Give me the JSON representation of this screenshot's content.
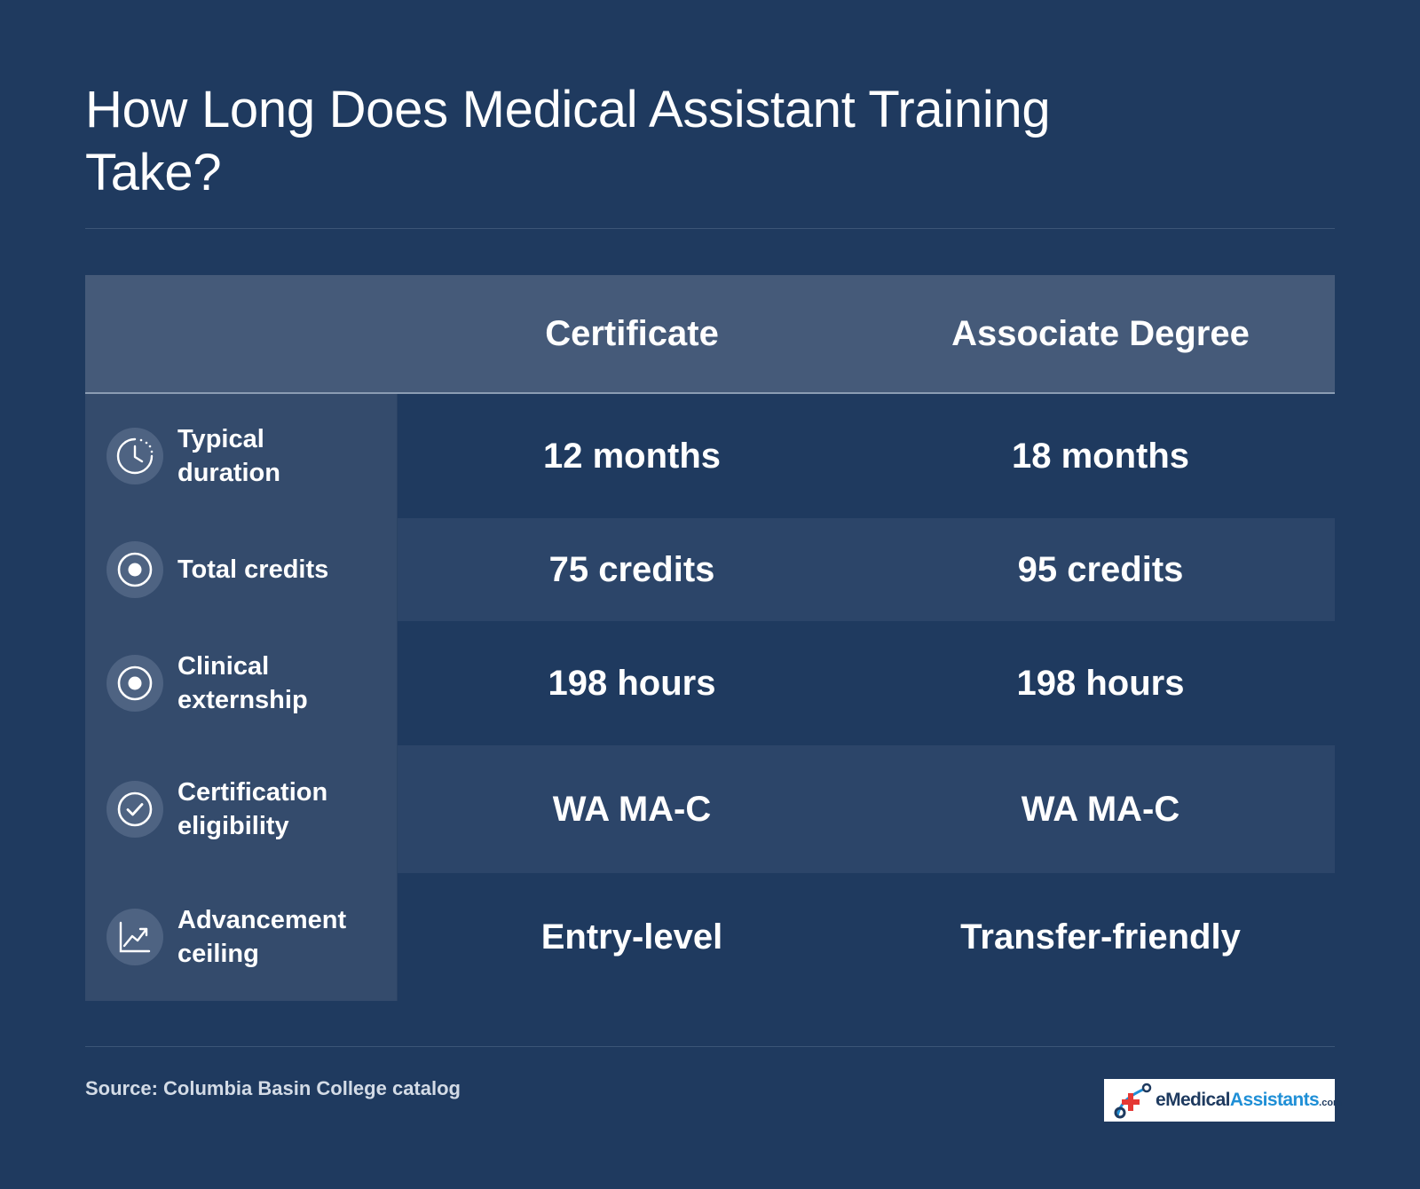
{
  "title": "How Long Does Medical Assistant Training Take?",
  "table": {
    "columns": [
      "Certificate",
      "Associate Degree"
    ],
    "rows": [
      {
        "label": "Typical duration",
        "icon": "clock-icon",
        "certificate": "12 months",
        "associate": "18 months"
      },
      {
        "label": "Total credits",
        "icon": "target-icon",
        "certificate": "75 credits",
        "associate": "95 credits"
      },
      {
        "label": "Clinical externship",
        "icon": "target-icon",
        "certificate": "198 hours",
        "associate": "198 hours"
      },
      {
        "label": "Certification eligibility",
        "icon": "check-circle-icon",
        "certificate": "WA MA-C",
        "associate": "WA MA-C"
      },
      {
        "label": "Advancement ceiling",
        "icon": "trend-chart-icon",
        "certificate": "Entry-level",
        "associate": "Transfer-friendly"
      }
    ]
  },
  "source": "Source: Columbia Basin College catalog",
  "logo": {
    "part1": "eMedical",
    "part2": "Assistants",
    "part3": ".com"
  },
  "colors": {
    "background": "#1f3a5f",
    "header": "#455a79",
    "label_column": "#344b6c",
    "alt_row": "#2c4569",
    "logo_accent": "#1f8fd6",
    "logo_red": "#e53935"
  }
}
